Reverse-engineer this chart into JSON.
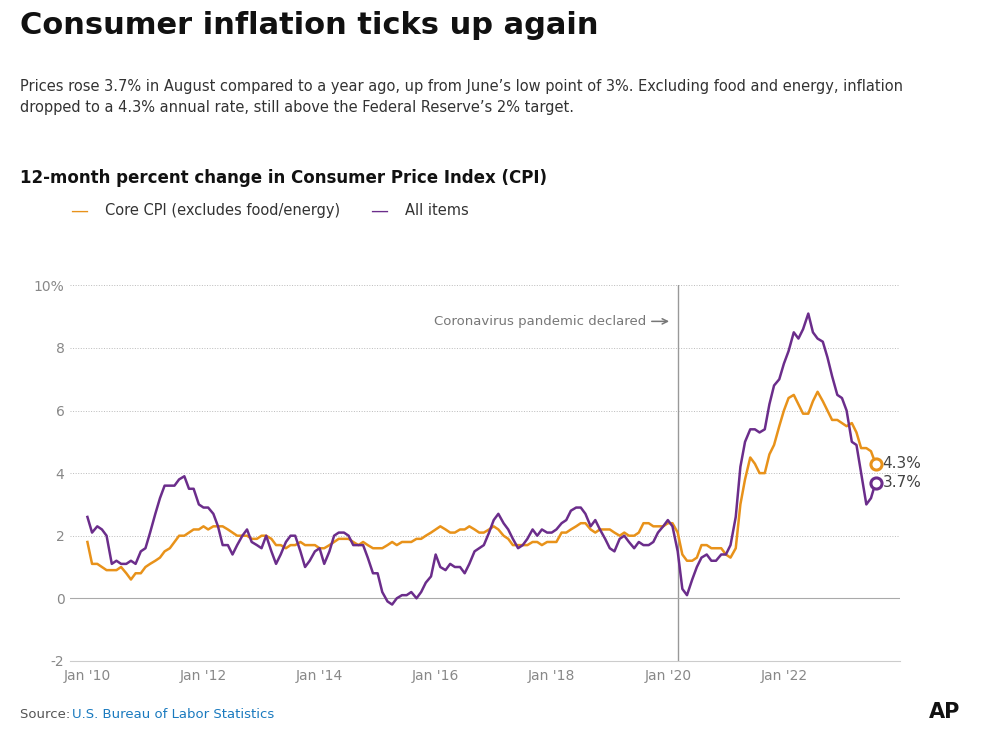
{
  "title": "Consumer inflation ticks up again",
  "subtitle": "Prices rose 3.7% in August compared to a year ago, up from June’s low point of 3%. Excluding food and energy, inflation\ndropped to a 4.3% annual rate, still above the Federal Reserve’s 2% target.",
  "chart_label": "12-month percent change in Consumer Price Index (CPI)",
  "source_text": "Source: ",
  "source_link": "U.S. Bureau of Labor Statistics",
  "legend_core": "Core CPI (excludes food/energy)",
  "legend_all": "All items",
  "core_color": "#E8921A",
  "all_color": "#6B2D8B",
  "annotation_text": "Coronavirus pandemic declared",
  "vline_x": 2020.17,
  "core_end_label": "4.3%",
  "all_end_label": "3.7%",
  "ylim": [
    -2,
    10
  ],
  "yticks": [
    -2,
    0,
    2,
    4,
    6,
    8,
    10
  ],
  "ytick_labels": [
    "-2",
    "0",
    "2",
    "4",
    "6",
    "8",
    "10%"
  ],
  "xlim_start": 2009.7,
  "xlim_end": 2024.0,
  "background_color": "#FFFFFF",
  "grid_color": "#BBBBBB",
  "core_data": [
    [
      2010.0,
      1.8
    ],
    [
      2010.08,
      1.1
    ],
    [
      2010.17,
      1.1
    ],
    [
      2010.25,
      1.0
    ],
    [
      2010.33,
      0.9
    ],
    [
      2010.42,
      0.9
    ],
    [
      2010.5,
      0.9
    ],
    [
      2010.58,
      1.0
    ],
    [
      2010.67,
      0.8
    ],
    [
      2010.75,
      0.6
    ],
    [
      2010.83,
      0.8
    ],
    [
      2010.92,
      0.8
    ],
    [
      2011.0,
      1.0
    ],
    [
      2011.08,
      1.1
    ],
    [
      2011.17,
      1.2
    ],
    [
      2011.25,
      1.3
    ],
    [
      2011.33,
      1.5
    ],
    [
      2011.42,
      1.6
    ],
    [
      2011.5,
      1.8
    ],
    [
      2011.58,
      2.0
    ],
    [
      2011.67,
      2.0
    ],
    [
      2011.75,
      2.1
    ],
    [
      2011.83,
      2.2
    ],
    [
      2011.92,
      2.2
    ],
    [
      2012.0,
      2.3
    ],
    [
      2012.08,
      2.2
    ],
    [
      2012.17,
      2.3
    ],
    [
      2012.25,
      2.3
    ],
    [
      2012.33,
      2.3
    ],
    [
      2012.42,
      2.2
    ],
    [
      2012.5,
      2.1
    ],
    [
      2012.58,
      2.0
    ],
    [
      2012.67,
      2.0
    ],
    [
      2012.75,
      2.0
    ],
    [
      2012.83,
      1.9
    ],
    [
      2012.92,
      1.9
    ],
    [
      2013.0,
      2.0
    ],
    [
      2013.08,
      2.0
    ],
    [
      2013.17,
      1.9
    ],
    [
      2013.25,
      1.7
    ],
    [
      2013.33,
      1.7
    ],
    [
      2013.42,
      1.6
    ],
    [
      2013.5,
      1.7
    ],
    [
      2013.58,
      1.7
    ],
    [
      2013.67,
      1.8
    ],
    [
      2013.75,
      1.7
    ],
    [
      2013.83,
      1.7
    ],
    [
      2013.92,
      1.7
    ],
    [
      2014.0,
      1.6
    ],
    [
      2014.08,
      1.6
    ],
    [
      2014.17,
      1.7
    ],
    [
      2014.25,
      1.8
    ],
    [
      2014.33,
      1.9
    ],
    [
      2014.42,
      1.9
    ],
    [
      2014.5,
      1.9
    ],
    [
      2014.58,
      1.8
    ],
    [
      2014.67,
      1.7
    ],
    [
      2014.75,
      1.8
    ],
    [
      2014.83,
      1.7
    ],
    [
      2014.92,
      1.6
    ],
    [
      2015.0,
      1.6
    ],
    [
      2015.08,
      1.6
    ],
    [
      2015.17,
      1.7
    ],
    [
      2015.25,
      1.8
    ],
    [
      2015.33,
      1.7
    ],
    [
      2015.42,
      1.8
    ],
    [
      2015.5,
      1.8
    ],
    [
      2015.58,
      1.8
    ],
    [
      2015.67,
      1.9
    ],
    [
      2015.75,
      1.9
    ],
    [
      2015.83,
      2.0
    ],
    [
      2015.92,
      2.1
    ],
    [
      2016.0,
      2.2
    ],
    [
      2016.08,
      2.3
    ],
    [
      2016.17,
      2.2
    ],
    [
      2016.25,
      2.1
    ],
    [
      2016.33,
      2.1
    ],
    [
      2016.42,
      2.2
    ],
    [
      2016.5,
      2.2
    ],
    [
      2016.58,
      2.3
    ],
    [
      2016.67,
      2.2
    ],
    [
      2016.75,
      2.1
    ],
    [
      2016.83,
      2.1
    ],
    [
      2016.92,
      2.2
    ],
    [
      2017.0,
      2.3
    ],
    [
      2017.08,
      2.2
    ],
    [
      2017.17,
      2.0
    ],
    [
      2017.25,
      1.9
    ],
    [
      2017.33,
      1.7
    ],
    [
      2017.42,
      1.7
    ],
    [
      2017.5,
      1.7
    ],
    [
      2017.58,
      1.7
    ],
    [
      2017.67,
      1.8
    ],
    [
      2017.75,
      1.8
    ],
    [
      2017.83,
      1.7
    ],
    [
      2017.92,
      1.8
    ],
    [
      2018.0,
      1.8
    ],
    [
      2018.08,
      1.8
    ],
    [
      2018.17,
      2.1
    ],
    [
      2018.25,
      2.1
    ],
    [
      2018.33,
      2.2
    ],
    [
      2018.42,
      2.3
    ],
    [
      2018.5,
      2.4
    ],
    [
      2018.58,
      2.4
    ],
    [
      2018.67,
      2.2
    ],
    [
      2018.75,
      2.1
    ],
    [
      2018.83,
      2.2
    ],
    [
      2018.92,
      2.2
    ],
    [
      2019.0,
      2.2
    ],
    [
      2019.08,
      2.1
    ],
    [
      2019.17,
      2.0
    ],
    [
      2019.25,
      2.1
    ],
    [
      2019.33,
      2.0
    ],
    [
      2019.42,
      2.0
    ],
    [
      2019.5,
      2.1
    ],
    [
      2019.58,
      2.4
    ],
    [
      2019.67,
      2.4
    ],
    [
      2019.75,
      2.3
    ],
    [
      2019.83,
      2.3
    ],
    [
      2019.92,
      2.3
    ],
    [
      2020.0,
      2.4
    ],
    [
      2020.08,
      2.4
    ],
    [
      2020.17,
      2.1
    ],
    [
      2020.25,
      1.4
    ],
    [
      2020.33,
      1.2
    ],
    [
      2020.42,
      1.2
    ],
    [
      2020.5,
      1.3
    ],
    [
      2020.58,
      1.7
    ],
    [
      2020.67,
      1.7
    ],
    [
      2020.75,
      1.6
    ],
    [
      2020.83,
      1.6
    ],
    [
      2020.92,
      1.6
    ],
    [
      2021.0,
      1.4
    ],
    [
      2021.08,
      1.3
    ],
    [
      2021.17,
      1.6
    ],
    [
      2021.25,
      3.0
    ],
    [
      2021.33,
      3.8
    ],
    [
      2021.42,
      4.5
    ],
    [
      2021.5,
      4.3
    ],
    [
      2021.58,
      4.0
    ],
    [
      2021.67,
      4.0
    ],
    [
      2021.75,
      4.6
    ],
    [
      2021.83,
      4.9
    ],
    [
      2021.92,
      5.5
    ],
    [
      2022.0,
      6.0
    ],
    [
      2022.08,
      6.4
    ],
    [
      2022.17,
      6.5
    ],
    [
      2022.25,
      6.2
    ],
    [
      2022.33,
      5.9
    ],
    [
      2022.42,
      5.9
    ],
    [
      2022.5,
      6.3
    ],
    [
      2022.58,
      6.6
    ],
    [
      2022.67,
      6.3
    ],
    [
      2022.75,
      6.0
    ],
    [
      2022.83,
      5.7
    ],
    [
      2022.92,
      5.7
    ],
    [
      2023.0,
      5.6
    ],
    [
      2023.08,
      5.5
    ],
    [
      2023.17,
      5.6
    ],
    [
      2023.25,
      5.3
    ],
    [
      2023.33,
      4.8
    ],
    [
      2023.42,
      4.8
    ],
    [
      2023.5,
      4.7
    ],
    [
      2023.58,
      4.3
    ]
  ],
  "all_data": [
    [
      2010.0,
      2.6
    ],
    [
      2010.08,
      2.1
    ],
    [
      2010.17,
      2.3
    ],
    [
      2010.25,
      2.2
    ],
    [
      2010.33,
      2.0
    ],
    [
      2010.42,
      1.1
    ],
    [
      2010.5,
      1.2
    ],
    [
      2010.58,
      1.1
    ],
    [
      2010.67,
      1.1
    ],
    [
      2010.75,
      1.2
    ],
    [
      2010.83,
      1.1
    ],
    [
      2010.92,
      1.5
    ],
    [
      2011.0,
      1.6
    ],
    [
      2011.08,
      2.1
    ],
    [
      2011.17,
      2.7
    ],
    [
      2011.25,
      3.2
    ],
    [
      2011.33,
      3.6
    ],
    [
      2011.42,
      3.6
    ],
    [
      2011.5,
      3.6
    ],
    [
      2011.58,
      3.8
    ],
    [
      2011.67,
      3.9
    ],
    [
      2011.75,
      3.5
    ],
    [
      2011.83,
      3.5
    ],
    [
      2011.92,
      3.0
    ],
    [
      2012.0,
      2.9
    ],
    [
      2012.08,
      2.9
    ],
    [
      2012.17,
      2.7
    ],
    [
      2012.25,
      2.3
    ],
    [
      2012.33,
      1.7
    ],
    [
      2012.42,
      1.7
    ],
    [
      2012.5,
      1.4
    ],
    [
      2012.58,
      1.7
    ],
    [
      2012.67,
      2.0
    ],
    [
      2012.75,
      2.2
    ],
    [
      2012.83,
      1.8
    ],
    [
      2012.92,
      1.7
    ],
    [
      2013.0,
      1.6
    ],
    [
      2013.08,
      2.0
    ],
    [
      2013.17,
      1.5
    ],
    [
      2013.25,
      1.1
    ],
    [
      2013.33,
      1.4
    ],
    [
      2013.42,
      1.8
    ],
    [
      2013.5,
      2.0
    ],
    [
      2013.58,
      2.0
    ],
    [
      2013.67,
      1.5
    ],
    [
      2013.75,
      1.0
    ],
    [
      2013.83,
      1.2
    ],
    [
      2013.92,
      1.5
    ],
    [
      2014.0,
      1.6
    ],
    [
      2014.08,
      1.1
    ],
    [
      2014.17,
      1.5
    ],
    [
      2014.25,
      2.0
    ],
    [
      2014.33,
      2.1
    ],
    [
      2014.42,
      2.1
    ],
    [
      2014.5,
      2.0
    ],
    [
      2014.58,
      1.7
    ],
    [
      2014.67,
      1.7
    ],
    [
      2014.75,
      1.7
    ],
    [
      2014.83,
      1.3
    ],
    [
      2014.92,
      0.8
    ],
    [
      2015.0,
      0.8
    ],
    [
      2015.08,
      0.2
    ],
    [
      2015.17,
      -0.1
    ],
    [
      2015.25,
      -0.2
    ],
    [
      2015.33,
      0.0
    ],
    [
      2015.42,
      0.1
    ],
    [
      2015.5,
      0.1
    ],
    [
      2015.58,
      0.2
    ],
    [
      2015.67,
      0.0
    ],
    [
      2015.75,
      0.2
    ],
    [
      2015.83,
      0.5
    ],
    [
      2015.92,
      0.7
    ],
    [
      2016.0,
      1.4
    ],
    [
      2016.08,
      1.0
    ],
    [
      2016.17,
      0.9
    ],
    [
      2016.25,
      1.1
    ],
    [
      2016.33,
      1.0
    ],
    [
      2016.42,
      1.0
    ],
    [
      2016.5,
      0.8
    ],
    [
      2016.58,
      1.1
    ],
    [
      2016.67,
      1.5
    ],
    [
      2016.75,
      1.6
    ],
    [
      2016.83,
      1.7
    ],
    [
      2016.92,
      2.1
    ],
    [
      2017.0,
      2.5
    ],
    [
      2017.08,
      2.7
    ],
    [
      2017.17,
      2.4
    ],
    [
      2017.25,
      2.2
    ],
    [
      2017.33,
      1.9
    ],
    [
      2017.42,
      1.6
    ],
    [
      2017.5,
      1.7
    ],
    [
      2017.58,
      1.9
    ],
    [
      2017.67,
      2.2
    ],
    [
      2017.75,
      2.0
    ],
    [
      2017.83,
      2.2
    ],
    [
      2017.92,
      2.1
    ],
    [
      2018.0,
      2.1
    ],
    [
      2018.08,
      2.2
    ],
    [
      2018.17,
      2.4
    ],
    [
      2018.25,
      2.5
    ],
    [
      2018.33,
      2.8
    ],
    [
      2018.42,
      2.9
    ],
    [
      2018.5,
      2.9
    ],
    [
      2018.58,
      2.7
    ],
    [
      2018.67,
      2.3
    ],
    [
      2018.75,
      2.5
    ],
    [
      2018.83,
      2.2
    ],
    [
      2018.92,
      1.9
    ],
    [
      2019.0,
      1.6
    ],
    [
      2019.08,
      1.5
    ],
    [
      2019.17,
      1.9
    ],
    [
      2019.25,
      2.0
    ],
    [
      2019.33,
      1.8
    ],
    [
      2019.42,
      1.6
    ],
    [
      2019.5,
      1.8
    ],
    [
      2019.58,
      1.7
    ],
    [
      2019.67,
      1.7
    ],
    [
      2019.75,
      1.8
    ],
    [
      2019.83,
      2.1
    ],
    [
      2019.92,
      2.3
    ],
    [
      2020.0,
      2.5
    ],
    [
      2020.08,
      2.3
    ],
    [
      2020.17,
      1.5
    ],
    [
      2020.25,
      0.3
    ],
    [
      2020.33,
      0.1
    ],
    [
      2020.42,
      0.6
    ],
    [
      2020.5,
      1.0
    ],
    [
      2020.58,
      1.3
    ],
    [
      2020.67,
      1.4
    ],
    [
      2020.75,
      1.2
    ],
    [
      2020.83,
      1.2
    ],
    [
      2020.92,
      1.4
    ],
    [
      2021.0,
      1.4
    ],
    [
      2021.08,
      1.7
    ],
    [
      2021.17,
      2.6
    ],
    [
      2021.25,
      4.2
    ],
    [
      2021.33,
      5.0
    ],
    [
      2021.42,
      5.4
    ],
    [
      2021.5,
      5.4
    ],
    [
      2021.58,
      5.3
    ],
    [
      2021.67,
      5.4
    ],
    [
      2021.75,
      6.2
    ],
    [
      2021.83,
      6.8
    ],
    [
      2021.92,
      7.0
    ],
    [
      2022.0,
      7.5
    ],
    [
      2022.08,
      7.9
    ],
    [
      2022.17,
      8.5
    ],
    [
      2022.25,
      8.3
    ],
    [
      2022.33,
      8.6
    ],
    [
      2022.42,
      9.1
    ],
    [
      2022.5,
      8.5
    ],
    [
      2022.58,
      8.3
    ],
    [
      2022.67,
      8.2
    ],
    [
      2022.75,
      7.7
    ],
    [
      2022.83,
      7.1
    ],
    [
      2022.92,
      6.5
    ],
    [
      2023.0,
      6.4
    ],
    [
      2023.08,
      6.0
    ],
    [
      2023.17,
      5.0
    ],
    [
      2023.25,
      4.9
    ],
    [
      2023.33,
      4.0
    ],
    [
      2023.42,
      3.0
    ],
    [
      2023.5,
      3.2
    ],
    [
      2023.58,
      3.7
    ]
  ]
}
